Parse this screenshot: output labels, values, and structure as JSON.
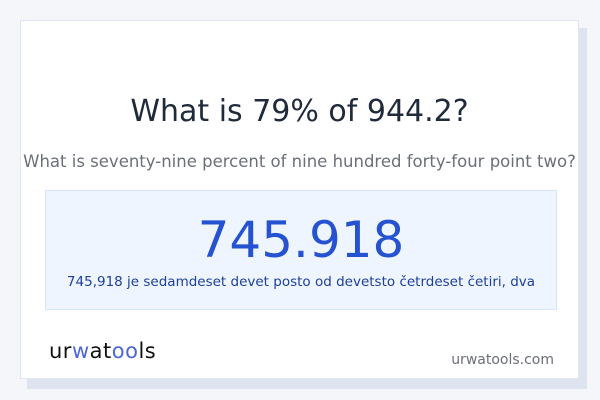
{
  "title": "What is 79% of 944.2?",
  "subtitle": "What is seventy-nine percent of nine hundred forty-four point two?",
  "result": {
    "value": "745.918",
    "words": "745,918 je sedamdeset devet posto od devetsto četrdeset četiri, dva"
  },
  "footer": {
    "logo": "urwatools",
    "logo_parts": [
      "ur",
      "w",
      "at",
      "oo",
      "ls"
    ],
    "site": "urwatools.com"
  },
  "colors": {
    "accent": "#2452d0",
    "logo_accent": "#4a66d8",
    "result_bg": "#eef5ff"
  }
}
